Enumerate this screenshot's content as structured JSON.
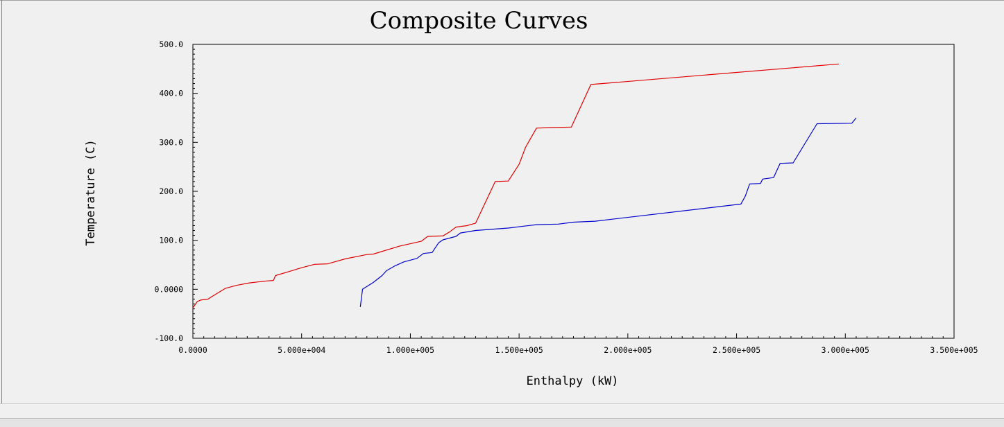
{
  "chart_data": {
    "type": "line",
    "title": "Composite Curves",
    "xlabel": "Enthalpy (kW)",
    "ylabel": "Temperature (C)",
    "xlim": [
      0,
      350000
    ],
    "ylim": [
      -100,
      500
    ],
    "x_ticks": [
      0,
      50000,
      100000,
      150000,
      200000,
      250000,
      300000,
      350000
    ],
    "x_tick_labels": [
      "0.0000",
      "5.000e+004",
      "1.000e+005",
      "1.500e+005",
      "2.000e+005",
      "2.500e+005",
      "3.000e+005",
      "3.500e+005"
    ],
    "y_ticks": [
      -100,
      0,
      100,
      200,
      300,
      400,
      500
    ],
    "y_tick_labels": [
      "-100.0",
      "0.0000",
      "100.0",
      "200.0",
      "300.0",
      "400.0",
      "500.0"
    ],
    "grid": false,
    "series": [
      {
        "color": "#e00000",
        "points": [
          [
            0,
            -38
          ],
          [
            2000,
            -25
          ],
          [
            3500,
            -22
          ],
          [
            7000,
            -20
          ],
          [
            8000,
            -17
          ],
          [
            15000,
            2
          ],
          [
            20000,
            8
          ],
          [
            26000,
            13
          ],
          [
            30000,
            15
          ],
          [
            34000,
            17
          ],
          [
            37000,
            18
          ],
          [
            38000,
            28
          ],
          [
            44000,
            36
          ],
          [
            50000,
            44
          ],
          [
            56000,
            51
          ],
          [
            62000,
            52
          ],
          [
            70000,
            62
          ],
          [
            80000,
            71
          ],
          [
            83000,
            72
          ],
          [
            95000,
            88
          ],
          [
            105000,
            98
          ],
          [
            108000,
            108
          ],
          [
            115000,
            109
          ],
          [
            118000,
            117
          ],
          [
            121000,
            127
          ],
          [
            126000,
            130
          ],
          [
            130000,
            135
          ],
          [
            139000,
            220
          ],
          [
            145000,
            221
          ],
          [
            150000,
            255
          ],
          [
            153000,
            290
          ],
          [
            158000,
            329
          ],
          [
            164000,
            330
          ],
          [
            174000,
            331
          ],
          [
            183000,
            418
          ],
          [
            297000,
            460
          ]
        ]
      },
      {
        "color": "#0000cc",
        "points": [
          [
            77000,
            -36
          ],
          [
            78000,
            0
          ],
          [
            83000,
            14
          ],
          [
            87000,
            28
          ],
          [
            89000,
            38
          ],
          [
            93000,
            48
          ],
          [
            97000,
            56
          ],
          [
            103000,
            63
          ],
          [
            106000,
            73
          ],
          [
            110000,
            75
          ],
          [
            113000,
            95
          ],
          [
            115000,
            101
          ],
          [
            121000,
            108
          ],
          [
            123000,
            115
          ],
          [
            130000,
            120
          ],
          [
            145000,
            125
          ],
          [
            158000,
            132
          ],
          [
            168000,
            133
          ],
          [
            175000,
            137
          ],
          [
            185000,
            139
          ],
          [
            252000,
            174
          ],
          [
            254000,
            190
          ],
          [
            256000,
            215
          ],
          [
            261000,
            216
          ],
          [
            262000,
            225
          ],
          [
            267000,
            228
          ],
          [
            270000,
            257
          ],
          [
            276000,
            258
          ],
          [
            287000,
            338
          ],
          [
            303000,
            339
          ],
          [
            305000,
            350
          ]
        ]
      }
    ]
  }
}
